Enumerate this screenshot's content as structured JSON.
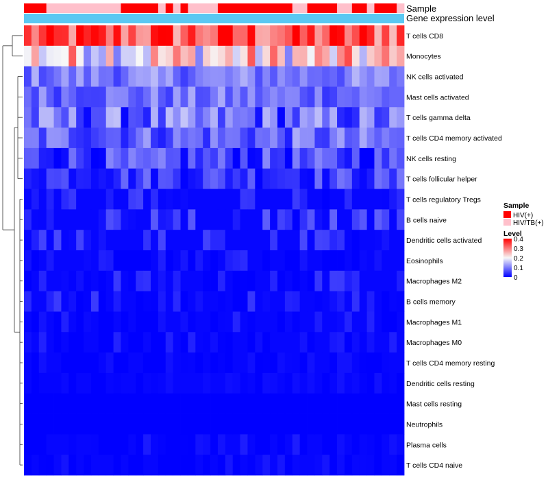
{
  "chart_data": {
    "type": "heatmap",
    "title": "",
    "annotation_tracks": [
      {
        "name": "Sample",
        "label": "Sample"
      },
      {
        "name": "Gene expression level",
        "label": "Gene expression level"
      }
    ],
    "sample_groups": [
      "H",
      "H",
      "H",
      "T",
      "T",
      "T",
      "T",
      "T",
      "T",
      "T",
      "T",
      "T",
      "T",
      "H",
      "H",
      "H",
      "H",
      "H",
      "T",
      "H",
      "T",
      "H",
      "T",
      "T",
      "T",
      "T",
      "H",
      "H",
      "H",
      "H",
      "H",
      "H",
      "H",
      "H",
      "H",
      "H",
      "T",
      "T",
      "H",
      "H",
      "H",
      "H",
      "T",
      "T",
      "H",
      "H",
      "T",
      "H",
      "H",
      "H",
      "T"
    ],
    "rows": [
      "T cells CD8",
      "Monocytes",
      "NK cells activated",
      "Mast cells activated",
      "T cells gamma delta",
      "T cells CD4 memory activated",
      "NK cells resting",
      "T cells follicular helper",
      "T cells regulatory  Tregs",
      "B cells naive",
      "Dendritic cells activated",
      "Eosinophils",
      "Macrophages M2",
      "B cells memory",
      "Macrophages M1",
      "Macrophages M0",
      "T cells CD4 memory resting",
      "Dendritic cells resting",
      "Mast cells resting",
      "Neutrophils",
      "Plasma cells",
      "T cells CD4 naive"
    ],
    "n_columns": 51,
    "value_range": [
      0,
      0.4
    ],
    "row_base_levels": [
      0.33,
      0.22,
      0.1,
      0.09,
      0.08,
      0.08,
      0.05,
      0.05,
      0.03,
      0.04,
      0.03,
      0.02,
      0.02,
      0.02,
      0.01,
      0.01,
      0.005,
      0.005,
      0.0,
      0.0,
      0.005,
      0.005
    ],
    "row_spread": [
      0.1,
      0.12,
      0.05,
      0.05,
      0.08,
      0.06,
      0.06,
      0.05,
      0.03,
      0.04,
      0.03,
      0.03,
      0.03,
      0.03,
      0.02,
      0.02,
      0.01,
      0.01,
      0.0,
      0.0,
      0.02,
      0.015
    ],
    "legend": {
      "sample_title": "Sample",
      "sample_entries": [
        {
          "key": "H",
          "label": "HIV(+)",
          "color": "#ff0000"
        },
        {
          "key": "T",
          "label": "HIV/TB(+)",
          "color": "#ffc0cb"
        }
      ],
      "level_title": "Level",
      "level_ticks": [
        "0.4",
        "0.3",
        "0.2",
        "0.1",
        "0"
      ],
      "level_tick_values": [
        0.4,
        0.3,
        0.2,
        0.1,
        0
      ]
    },
    "colors": {
      "low": "#0000ff",
      "mid": "#f7f7f7",
      "high": "#ff0000",
      "expression_bar": "#5bc8f2"
    }
  }
}
